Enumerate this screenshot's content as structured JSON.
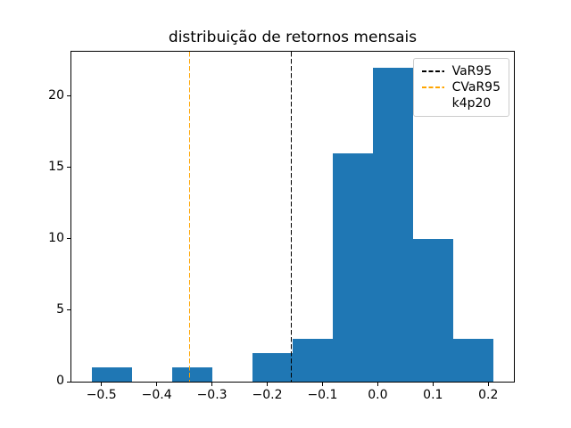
{
  "figure": {
    "background_color": "#ffffff",
    "frame_color": "#000000"
  },
  "chart_data": {
    "type": "histogram",
    "title": "distribuição de retornos mensais",
    "xlabel": "",
    "ylabel": "",
    "bar_color": "#1f77b4",
    "bin_edges": [
      -0.518,
      -0.4452,
      -0.3724,
      -0.2996,
      -0.2268,
      -0.154,
      -0.0812,
      -0.0084,
      0.0644,
      0.1372,
      0.21
    ],
    "counts": [
      1,
      0,
      1,
      0,
      2,
      3,
      16,
      22,
      10,
      3
    ],
    "xlim": [
      -0.5544,
      0.2464
    ],
    "ylim": [
      0,
      23.1
    ],
    "grid": false,
    "x_ticks": [
      {
        "value": -0.5,
        "label": "−0.5"
      },
      {
        "value": -0.4,
        "label": "−0.4"
      },
      {
        "value": -0.3,
        "label": "−0.3"
      },
      {
        "value": -0.2,
        "label": "−0.2"
      },
      {
        "value": -0.1,
        "label": "−0.1"
      },
      {
        "value": 0.0,
        "label": "0.0"
      },
      {
        "value": 0.1,
        "label": "0.1"
      },
      {
        "value": 0.2,
        "label": "0.2"
      }
    ],
    "y_ticks": [
      {
        "value": 0,
        "label": "0"
      },
      {
        "value": 5,
        "label": "5"
      },
      {
        "value": 10,
        "label": "10"
      },
      {
        "value": 15,
        "label": "15"
      },
      {
        "value": 20,
        "label": "20"
      }
    ],
    "vlines": [
      {
        "name": "VaR95",
        "x": -0.1565,
        "color": "#000000",
        "style": "dashed"
      },
      {
        "name": "CVaR95",
        "x": -0.3403,
        "color": "#ffa500",
        "style": "dashed"
      }
    ],
    "legend": {
      "position": "upper right",
      "entries": [
        {
          "label": "VaR95",
          "color": "#000000",
          "dashed": true
        },
        {
          "label": "CVaR95",
          "color": "#ffa500",
          "dashed": true
        },
        {
          "label": "k4p20",
          "color": null,
          "dashed": false
        }
      ]
    }
  }
}
